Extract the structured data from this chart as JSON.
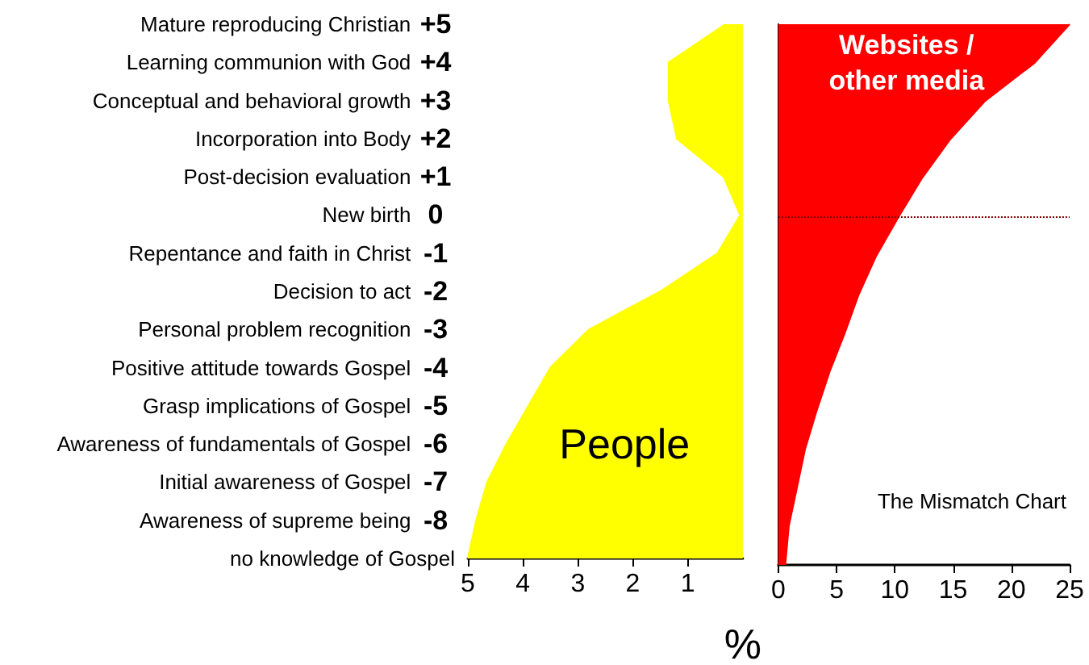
{
  "chart_data": [
    {
      "type": "area",
      "orientation": "horizontal",
      "xlim": [
        5,
        0
      ],
      "xticks": [
        5,
        4,
        3,
        2,
        1
      ],
      "xlabel": "%",
      "categories": [
        "Mature reproducing Christian +5",
        "Learning communion with God +4",
        "Conceptual and behavioral growth +3",
        "Incorporation into Body +2",
        "Post-decision evaluation +1",
        "New birth 0",
        "Repentance and faith in Christ -1",
        "Decision to act -2",
        "Personal problem recognition -3",
        "Positive attitude towards Gospel -4",
        "Grasp implications of Gospel -5",
        "Awareness of fundamentals of Gospel -6",
        "Initial awareness of Gospel -7",
        "Awareness of supreme being -8",
        "no knowledge of Gospel"
      ],
      "series": [
        {
          "name": "People",
          "color": "#ffff00",
          "values": [
            0.32,
            1.35,
            1.35,
            1.2,
            0.35,
            0.05,
            0.46,
            1.5,
            2.8,
            3.5,
            3.9,
            4.3,
            4.65,
            4.85,
            5.0
          ]
        }
      ]
    },
    {
      "type": "area",
      "orientation": "horizontal",
      "xlim": [
        0,
        25
      ],
      "xticks": [
        0,
        5,
        10,
        15,
        20,
        25
      ],
      "tick_labels": "x",
      "categories": [
        "Mature reproducing Christian +5",
        "Learning communion with God +4",
        "Conceptual and behavioral growth +3",
        "Incorporation into Body +2",
        "Post-decision evaluation +1",
        "New birth 0",
        "Repentance and faith in Christ -1",
        "Decision to act -2",
        "Personal problem recognition -3",
        "Positive attitude towards Gospel -4",
        "Grasp implications of Gospel -5",
        "Awareness of fundamentals of Gospel -6",
        "Initial awareness of Gospel -7",
        "Awareness of supreme being -8",
        "no knowledge of Gospel"
      ],
      "series": [
        {
          "name": "Websites / other media",
          "color": "#ff0000",
          "values": [
            25,
            22,
            17.7,
            14.7,
            12.3,
            10.3,
            8.4,
            6.9,
            5.7,
            4.4,
            3.3,
            2.3,
            1.6,
            0.9,
            0.6
          ]
        }
      ],
      "ref_lines": [
        {
          "axis": "y",
          "value": "New birth 0",
          "line_style": "dotted",
          "color": "#800000"
        }
      ],
      "annotations": [
        "The Mismatch Chart"
      ]
    }
  ]
}
